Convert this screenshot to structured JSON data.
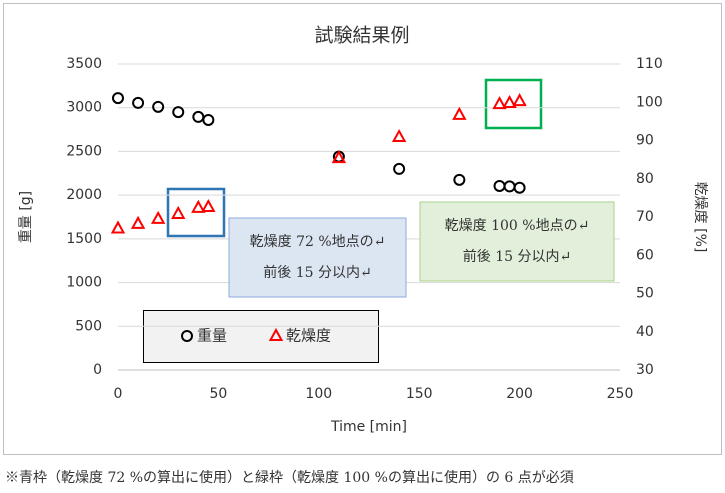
{
  "chart_data": {
    "type": "scatter",
    "title": "試験結果例",
    "x_label": "Time [min]",
    "y_label": "重量 [g]",
    "y2_label": "乾燥度 [%]",
    "x": [
      0,
      10,
      20,
      30,
      40,
      45,
      110,
      140,
      170,
      190,
      195,
      200
    ],
    "series": [
      {
        "name": "重量",
        "color": "#000000",
        "marker": "circle",
        "values": [
          3110,
          3055,
          3010,
          2950,
          2895,
          2860,
          2440,
          2300,
          2175,
          2105,
          2100,
          2085
        ]
      },
      {
        "name": "乾燥度",
        "color": "#ff0000",
        "marker": "triangle",
        "axis": "y2",
        "values": [
          67,
          68.2,
          69.5,
          70.8,
          72.4,
          72.6,
          85.4,
          90.9,
          96.7,
          99.5,
          99.8,
          100.3
        ]
      }
    ],
    "xlim": [
      0,
      250
    ],
    "xticks": [
      0,
      50,
      100,
      150,
      200,
      250
    ],
    "ylim": [
      0,
      3500
    ],
    "yticks": [
      0,
      500,
      1000,
      1500,
      2000,
      2500,
      3000,
      3500
    ],
    "y2lim": [
      30,
      110
    ],
    "y2ticks": [
      30,
      40,
      50,
      60,
      70,
      80,
      90,
      100,
      110
    ],
    "grid": true,
    "annotations": [
      {
        "lines": [
          "乾燥度 72 %地点の↵",
          "前後 15 分以内↵"
        ]
      },
      {
        "lines": [
          "乾燥度 100 %地点の↵",
          "前後 15 分以内↵"
        ]
      }
    ]
  },
  "footnote": "※青枠（乾燥度 72 %の算出に使用）と緑枠（乾燥度 100 %の算出に使用）の 6 点が必須"
}
